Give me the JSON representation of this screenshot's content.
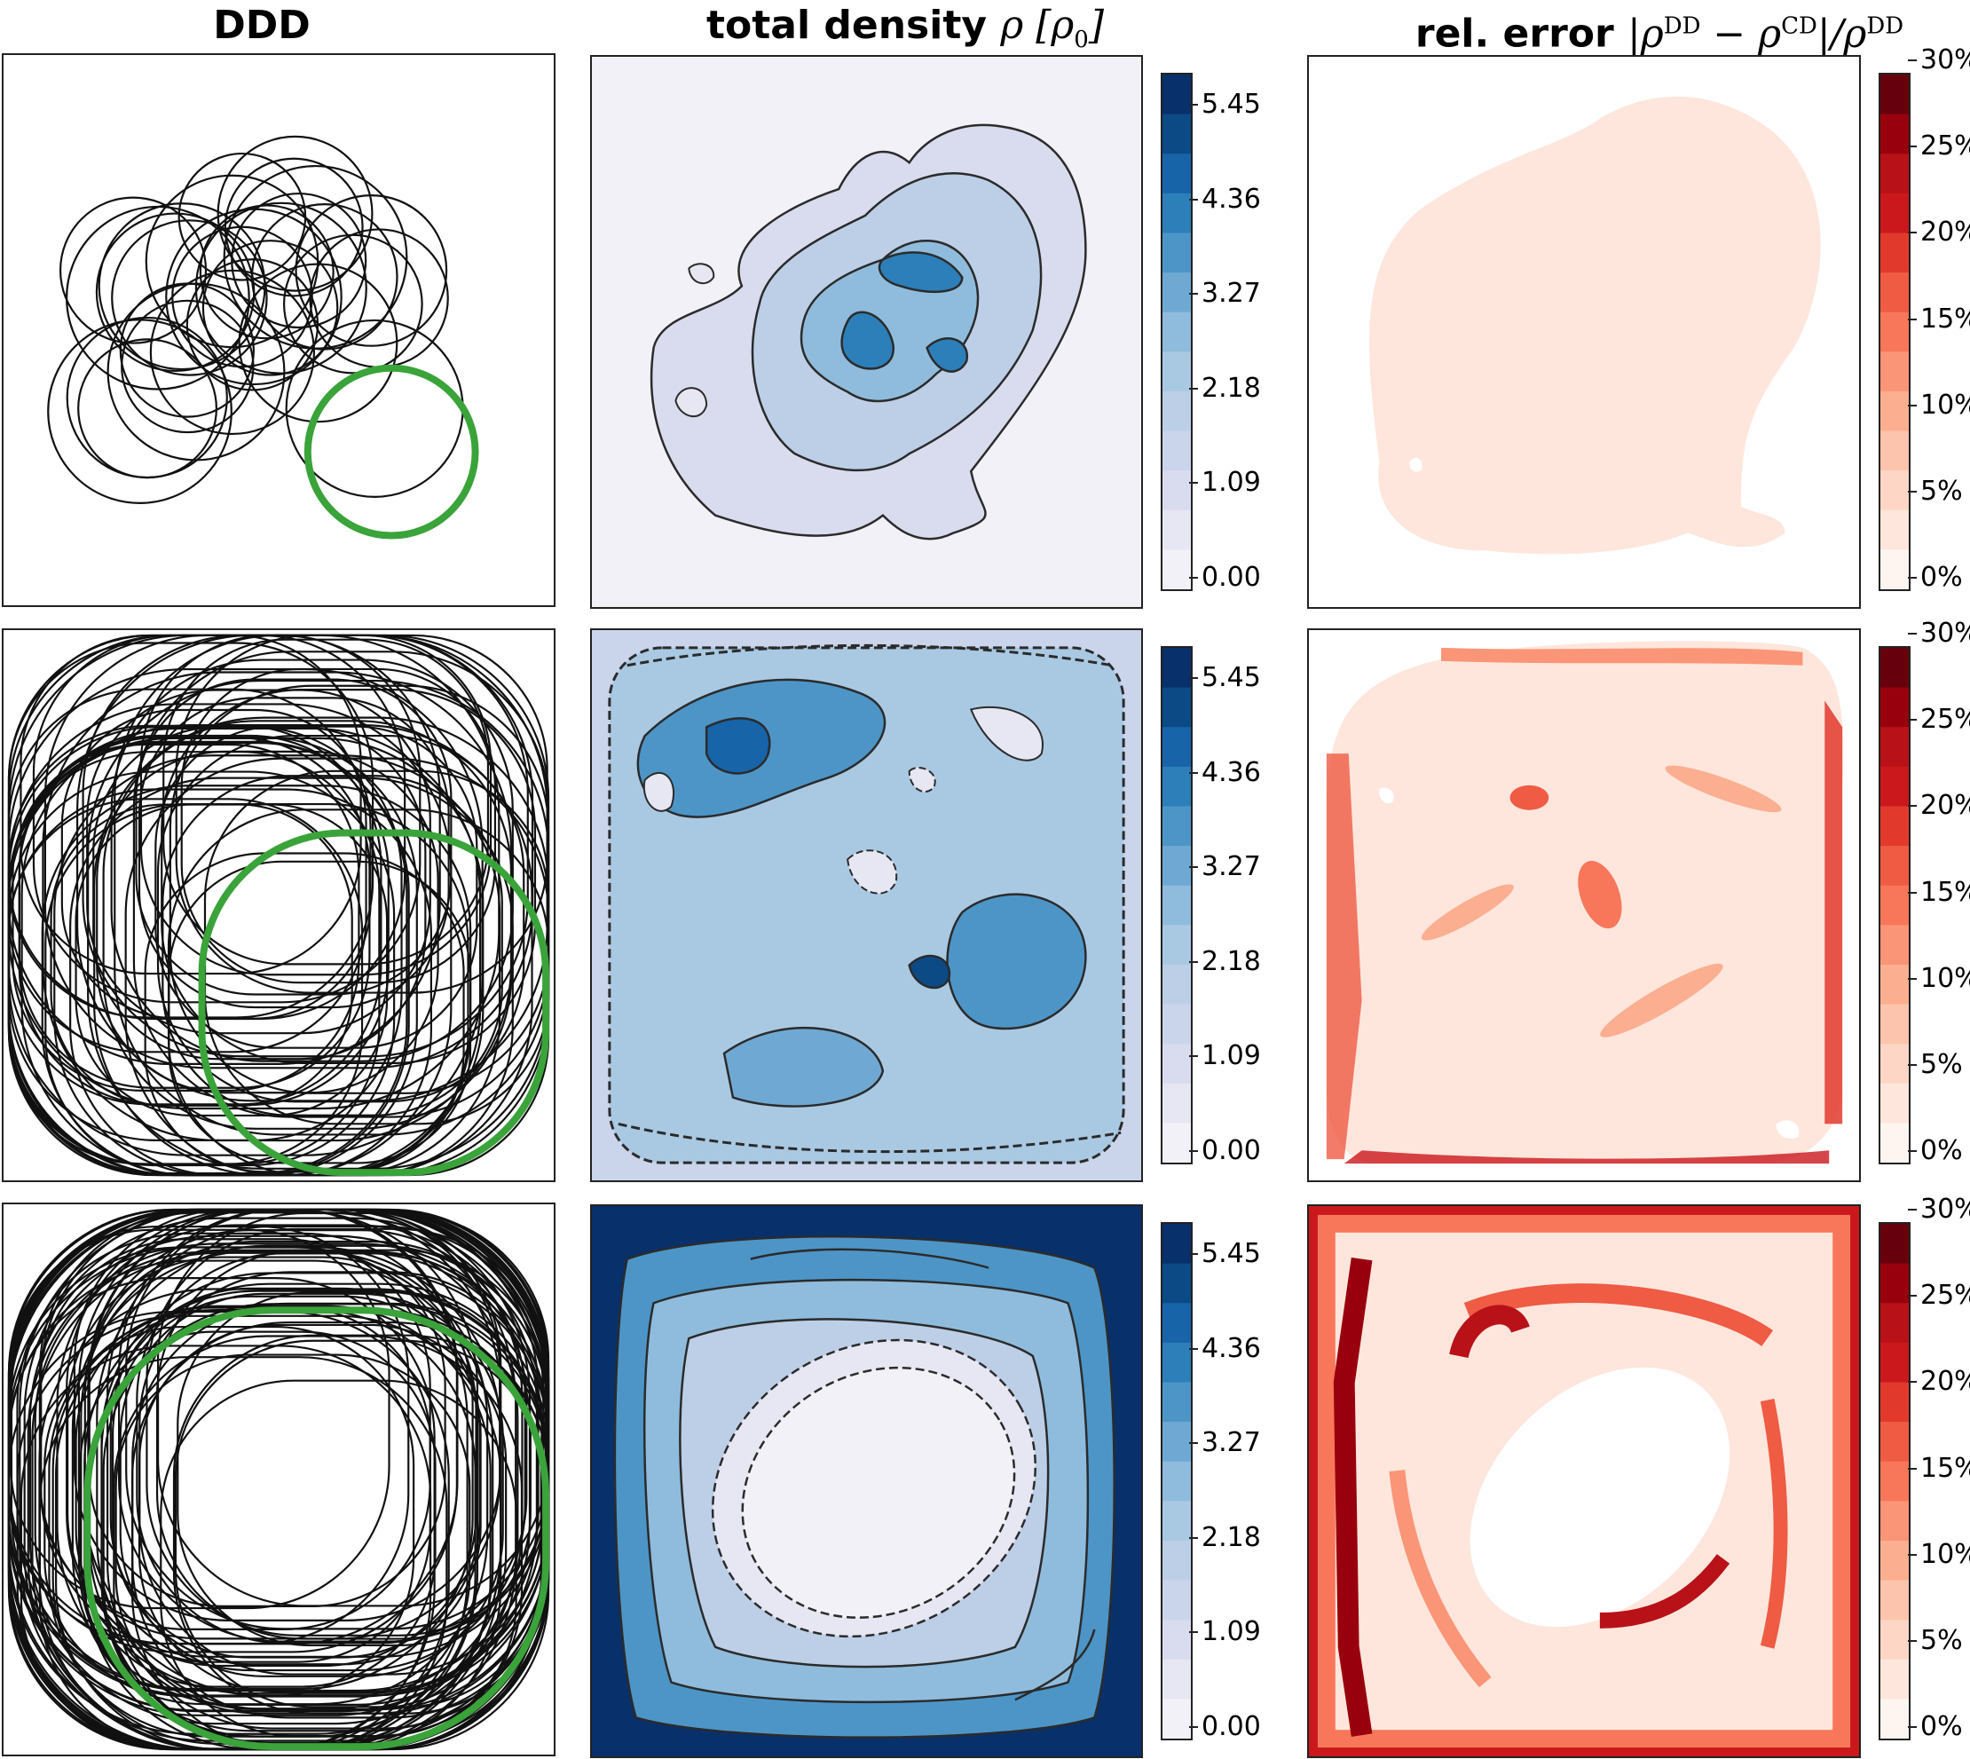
{
  "titles": {
    "ddd": "DDD",
    "density_text": "total density",
    "density_math": "ρ [ρ",
    "density_sub": "0",
    "density_close": "]",
    "error_text": "rel. error",
    "error_math_a": "|ρ",
    "error_sup_a": "DD",
    "error_math_b": " − ρ",
    "error_sup_b": "CD",
    "error_math_c": "|/ρ",
    "error_sup_c": "DD"
  },
  "density_colorbar": {
    "ticks": [
      "5.45",
      "4.36",
      "3.27",
      "2.18",
      "1.09",
      "0.00"
    ],
    "colors": [
      "#08306b",
      "#0b4a85",
      "#1764a8",
      "#2c7fb8",
      "#4d95c7",
      "#6fa9d3",
      "#8fbcdc",
      "#a9c9e3",
      "#bccfe7",
      "#cad4ea",
      "#d8dcee",
      "#e6e7f2",
      "#f2f1f7"
    ]
  },
  "error_colorbar": {
    "ticks": [
      "30%",
      "25%",
      "20%",
      "15%",
      "10%",
      "5%",
      "0%"
    ],
    "colors": [
      "#67000d",
      "#99000d",
      "#b91118",
      "#cb181d",
      "#e13a2d",
      "#ef5b43",
      "#f8775a",
      "#fb9577",
      "#fcae91",
      "#fdc4ad",
      "#fdd6c6",
      "#fee6dc",
      "#fff5f0"
    ]
  },
  "colors": {
    "highlight_circle": "#3aa33a",
    "loop_stroke": "#111111",
    "contour_stroke": "#2b2b2b"
  }
}
